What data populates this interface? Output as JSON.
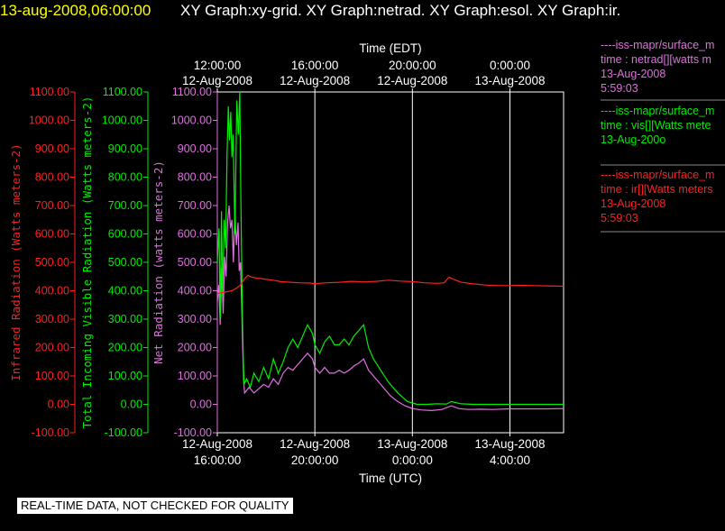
{
  "header": {
    "timestamp": "13-aug-2008,06:00:00",
    "graphs": "XY Graph:xy-grid.  XY Graph:netrad.  XY Graph:esol.  XY Graph:ir."
  },
  "colors": {
    "ir": "#ff2020",
    "vis": "#00ee00",
    "net": "#e070e0",
    "timestamp": "#ffff00"
  },
  "legend": {
    "net": {
      "source": "----iss-mapr/surface_m",
      "var": "time : netrad[][watts m",
      "date": "13-Aug-2008",
      "time": "5:59:03"
    },
    "vis": {
      "source": "----iss-mapr/surface_m",
      "var": "time : vis[][Watts mete",
      "date": "13-Aug-200o"
    },
    "ir": {
      "source": "----iss-mapr/surface_m",
      "var": "time : ir[][Watts meters",
      "date": "13-Aug-2008",
      "time": "5:59:03"
    }
  },
  "footer": {
    "qc_notice": "REAL-TIME DATA, NOT CHECKED FOR QUALITY"
  },
  "chart_data": {
    "type": "line",
    "top_axis": {
      "label": "Time (EDT)",
      "ticks": [
        {
          "time": "12:00:00",
          "date": "12-Aug-2008",
          "hours": 0
        },
        {
          "time": "16:00:00",
          "date": "12-Aug-2008",
          "hours": 4
        },
        {
          "time": "20:00:00",
          "date": "12-Aug-2008",
          "hours": 8
        },
        {
          "time": "0:00:00",
          "date": "13-Aug-2008",
          "hours": 12
        }
      ]
    },
    "bottom_axis": {
      "label": "Time (UTC)",
      "ticks": [
        {
          "date": "12-Aug-2008",
          "time": "16:00:00",
          "hours": 0
        },
        {
          "date": "12-Aug-2008",
          "time": "20:00:00",
          "hours": 4
        },
        {
          "date": "13-Aug-2008",
          "time": "0:00:00",
          "hours": 8
        },
        {
          "date": "13-Aug-2008",
          "time": "4:00:00",
          "hours": 12
        }
      ],
      "range_hours": [
        0,
        14.2
      ]
    },
    "y_axes": [
      {
        "label": "Infrared Radiation (Watts meters-2)",
        "color": "#ff2020",
        "range": [
          -100,
          1100
        ],
        "ticks": [
          "1100.00",
          "1000.00",
          "900.00",
          "800.00",
          "700.00",
          "600.00",
          "500.00",
          "400.00",
          "300.00",
          "200.00",
          "100.00",
          "0.00",
          "-100.00"
        ]
      },
      {
        "label": "Total Incoming Visible Radiation (Watts meters-2)",
        "color": "#00ee00",
        "range": [
          -100,
          1100
        ],
        "ticks": [
          "1100.00",
          "1000.00",
          "900.00",
          "800.00",
          "700.00",
          "600.00",
          "500.00",
          "400.00",
          "300.00",
          "200.00",
          "100.00",
          "0.00",
          "-100.00"
        ]
      },
      {
        "label": "Net Radiation (watts meters-2)",
        "color": "#e070e0",
        "range": [
          -100,
          1100
        ],
        "ticks": [
          "1100.00",
          "1000.00",
          "900.00",
          "800.00",
          "700.00",
          "600.00",
          "500.00",
          "400.00",
          "300.00",
          "200.00",
          "100.00",
          "0.00",
          "-100.00"
        ]
      }
    ],
    "series": [
      {
        "key": "ir",
        "color": "#ff2020",
        "points": [
          [
            0,
            390
          ],
          [
            0.3,
            395
          ],
          [
            0.6,
            400
          ],
          [
            0.8,
            410
          ],
          [
            0.95,
            420
          ],
          [
            1.1,
            440
          ],
          [
            1.25,
            455
          ],
          [
            1.4,
            448
          ],
          [
            1.6,
            445
          ],
          [
            1.8,
            443
          ],
          [
            2.0,
            440
          ],
          [
            2.3,
            437
          ],
          [
            2.6,
            432
          ],
          [
            3.0,
            430
          ],
          [
            3.4,
            428
          ],
          [
            3.8,
            427
          ],
          [
            4.0,
            425
          ],
          [
            4.5,
            428
          ],
          [
            5.0,
            430
          ],
          [
            5.5,
            433
          ],
          [
            6.0,
            431
          ],
          [
            6.5,
            433
          ],
          [
            7.0,
            437
          ],
          [
            7.5,
            434
          ],
          [
            8.0,
            432
          ],
          [
            8.5,
            428
          ],
          [
            9.0,
            426
          ],
          [
            9.3,
            428
          ],
          [
            9.5,
            448
          ],
          [
            9.7,
            440
          ],
          [
            10.0,
            430
          ],
          [
            10.5,
            424
          ],
          [
            11.0,
            420
          ],
          [
            11.5,
            418
          ],
          [
            12.0,
            418
          ],
          [
            12.5,
            419
          ],
          [
            13.0,
            418
          ],
          [
            13.5,
            417
          ],
          [
            14.2,
            416
          ]
        ]
      },
      {
        "key": "vis",
        "color": "#00ee00",
        "points": [
          [
            0,
            500
          ],
          [
            0.07,
            620
          ],
          [
            0.12,
            300
          ],
          [
            0.17,
            680
          ],
          [
            0.22,
            380
          ],
          [
            0.28,
            650
          ],
          [
            0.34,
            550
          ],
          [
            0.4,
            880
          ],
          [
            0.45,
            1050
          ],
          [
            0.5,
            930
          ],
          [
            0.55,
            1030
          ],
          [
            0.6,
            870
          ],
          [
            0.65,
            950
          ],
          [
            0.72,
            600
          ],
          [
            0.8,
            1070
          ],
          [
            0.86,
            950
          ],
          [
            0.92,
            1100
          ],
          [
            0.96,
            750
          ],
          [
            1.0,
            500
          ],
          [
            1.03,
            300
          ],
          [
            1.07,
            150
          ],
          [
            1.1,
            70
          ],
          [
            1.2,
            90
          ],
          [
            1.35,
            60
          ],
          [
            1.5,
            110
          ],
          [
            1.7,
            80
          ],
          [
            1.9,
            130
          ],
          [
            2.1,
            90
          ],
          [
            2.3,
            160
          ],
          [
            2.5,
            110
          ],
          [
            2.7,
            150
          ],
          [
            2.9,
            200
          ],
          [
            3.1,
            230
          ],
          [
            3.3,
            200
          ],
          [
            3.5,
            240
          ],
          [
            3.7,
            280
          ],
          [
            3.9,
            250
          ],
          [
            4.0,
            210
          ],
          [
            4.2,
            180
          ],
          [
            4.4,
            220
          ],
          [
            4.6,
            240
          ],
          [
            4.8,
            210
          ],
          [
            5.0,
            210
          ],
          [
            5.2,
            230
          ],
          [
            5.4,
            210
          ],
          [
            5.6,
            240
          ],
          [
            5.8,
            260
          ],
          [
            6.0,
            280
          ],
          [
            6.2,
            200
          ],
          [
            6.4,
            160
          ],
          [
            6.7,
            120
          ],
          [
            7.0,
            80
          ],
          [
            7.4,
            40
          ],
          [
            7.8,
            10
          ],
          [
            8.2,
            0
          ],
          [
            8.6,
            0
          ],
          [
            9.0,
            2
          ],
          [
            9.4,
            1
          ],
          [
            9.6,
            10
          ],
          [
            10.0,
            2
          ],
          [
            10.5,
            0
          ],
          [
            11.0,
            0
          ],
          [
            12.0,
            0
          ],
          [
            13.0,
            0
          ],
          [
            14.2,
            0
          ]
        ]
      },
      {
        "key": "net",
        "color": "#e070e0",
        "points": [
          [
            0,
            360
          ],
          [
            0.06,
            420
          ],
          [
            0.12,
            280
          ],
          [
            0.18,
            480
          ],
          [
            0.24,
            320
          ],
          [
            0.3,
            520
          ],
          [
            0.36,
            450
          ],
          [
            0.42,
            640
          ],
          [
            0.48,
            700
          ],
          [
            0.54,
            620
          ],
          [
            0.6,
            650
          ],
          [
            0.66,
            500
          ],
          [
            0.72,
            680
          ],
          [
            0.78,
            560
          ],
          [
            0.85,
            640
          ],
          [
            0.9,
            470
          ],
          [
            0.95,
            500
          ],
          [
            1.0,
            350
          ],
          [
            1.04,
            200
          ],
          [
            1.08,
            80
          ],
          [
            1.12,
            40
          ],
          [
            1.3,
            60
          ],
          [
            1.5,
            40
          ],
          [
            1.7,
            55
          ],
          [
            1.9,
            70
          ],
          [
            2.1,
            60
          ],
          [
            2.3,
            90
          ],
          [
            2.5,
            70
          ],
          [
            2.7,
            110
          ],
          [
            2.9,
            130
          ],
          [
            3.1,
            120
          ],
          [
            3.3,
            140
          ],
          [
            3.5,
            160
          ],
          [
            3.7,
            180
          ],
          [
            3.9,
            160
          ],
          [
            4.0,
            130
          ],
          [
            4.2,
            110
          ],
          [
            4.4,
            130
          ],
          [
            4.6,
            110
          ],
          [
            4.8,
            110
          ],
          [
            5.0,
            120
          ],
          [
            5.2,
            110
          ],
          [
            5.4,
            120
          ],
          [
            5.6,
            135
          ],
          [
            5.8,
            145
          ],
          [
            6.0,
            160
          ],
          [
            6.2,
            120
          ],
          [
            6.5,
            90
          ],
          [
            6.8,
            60
          ],
          [
            7.1,
            30
          ],
          [
            7.4,
            10
          ],
          [
            7.7,
            -5
          ],
          [
            8.0,
            -15
          ],
          [
            8.4,
            -20
          ],
          [
            8.8,
            -22
          ],
          [
            9.2,
            -18
          ],
          [
            9.6,
            -5
          ],
          [
            9.9,
            -15
          ],
          [
            10.3,
            -18
          ],
          [
            10.8,
            -17
          ],
          [
            11.3,
            -18
          ],
          [
            12.0,
            -16
          ],
          [
            12.8,
            -16
          ],
          [
            13.5,
            -16
          ],
          [
            14.2,
            -15
          ]
        ]
      }
    ]
  }
}
